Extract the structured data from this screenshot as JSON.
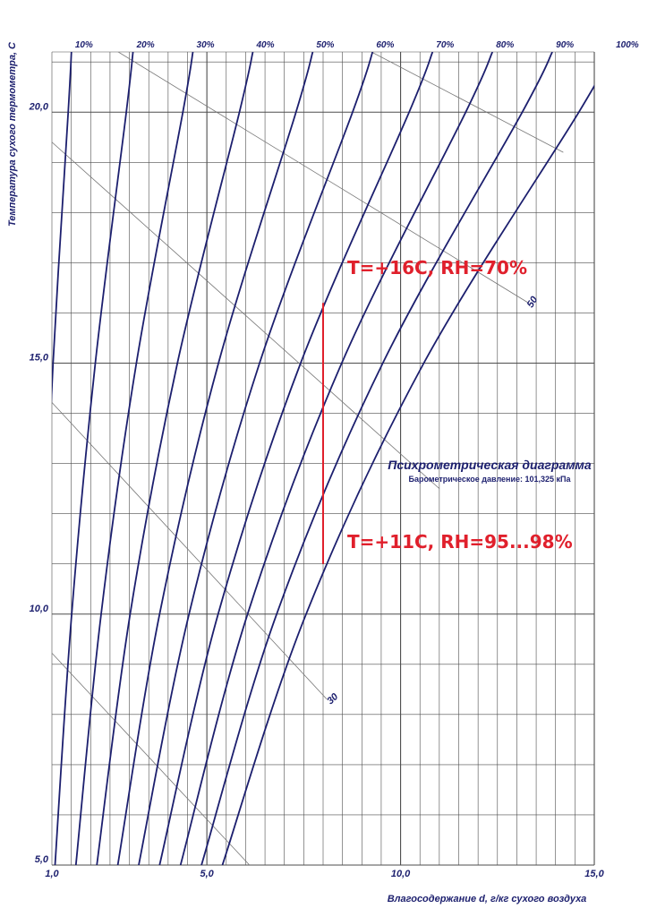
{
  "chart_data": {
    "type": "line",
    "title": "Психрометрическая диаграмма",
    "subtitle": "Барометрическое давление: 101,325 кПа",
    "xlabel": "Влагосодержание d, г/кг сухого воздуха",
    "ylabel": "Температура сухого термометра, С",
    "xlim": [
      1.0,
      15.0
    ],
    "ylim": [
      5.0,
      21.2
    ],
    "grid": true,
    "x_ticks": [
      {
        "value": 1.0,
        "label": "1,0"
      },
      {
        "value": 5.0,
        "label": "5,0"
      },
      {
        "value": 10.0,
        "label": "10,0"
      },
      {
        "value": 15.0,
        "label": "15,0"
      }
    ],
    "y_ticks": [
      {
        "value": 5.0,
        "label": "5,0"
      },
      {
        "value": 10.0,
        "label": "10,0"
      },
      {
        "value": 15.0,
        "label": "15,0"
      },
      {
        "value": 20.0,
        "label": "20,0"
      }
    ],
    "series": [
      {
        "name": "10%",
        "label": "10%",
        "x": [
          0.54,
          0.75,
          1.03,
          1.42
        ],
        "y": [
          5,
          10,
          15,
          20
        ]
      },
      {
        "name": "20%",
        "label": "20%",
        "x": [
          1.08,
          1.51,
          2.12,
          2.92
        ],
        "y": [
          5,
          10,
          15,
          20
        ]
      },
      {
        "name": "30%",
        "label": "30%",
        "x": [
          1.62,
          2.27,
          3.18,
          4.38
        ],
        "y": [
          5,
          10,
          15,
          20
        ]
      },
      {
        "name": "40%",
        "label": "40%",
        "x": [
          2.16,
          3.02,
          4.24,
          5.84
        ],
        "y": [
          5,
          10,
          15,
          20
        ]
      },
      {
        "name": "50%",
        "label": "50%",
        "x": [
          2.7,
          3.78,
          5.3,
          7.3
        ],
        "y": [
          5,
          10,
          15,
          20
        ]
      },
      {
        "name": "60%",
        "label": "60%",
        "x": [
          3.24,
          4.54,
          6.36,
          8.76
        ],
        "y": [
          5,
          10,
          15,
          20
        ]
      },
      {
        "name": "70%",
        "label": "70%",
        "x": [
          3.78,
          5.29,
          7.42,
          10.22
        ],
        "y": [
          5,
          10,
          15,
          20
        ]
      },
      {
        "name": "80%",
        "label": "80%",
        "x": [
          4.32,
          6.05,
          8.48,
          11.68
        ],
        "y": [
          5,
          10,
          15,
          20
        ]
      },
      {
        "name": "90%",
        "label": "90%",
        "x": [
          4.86,
          6.8,
          9.54,
          13.14
        ],
        "y": [
          5,
          10,
          15,
          20
        ]
      },
      {
        "name": "100%",
        "label": "100%",
        "x": [
          5.4,
          7.56,
          10.6,
          14.6
        ],
        "y": [
          5,
          10,
          15,
          20
        ]
      }
    ],
    "diagonal_lines": [
      {
        "x": [
          -0.3,
          6.1
        ],
        "y": [
          10.3,
          5.0
        ]
      },
      {
        "x": [
          -0.3,
          8.1
        ],
        "y": [
          15.3,
          8.3
        ],
        "label": "30"
      },
      {
        "x": [
          -0.3,
          11.0
        ],
        "y": [
          20.3,
          12.5
        ]
      },
      {
        "x": [
          2.5,
          13.3
        ],
        "y": [
          21.3,
          16.2
        ],
        "label": "50"
      },
      {
        "x": [
          9.0,
          14.2
        ],
        "y": [
          21.3,
          19.2
        ]
      }
    ],
    "process_line": {
      "x": [
        8.0,
        8.0
      ],
      "y": [
        11.0,
        16.2
      ]
    },
    "annotations": [
      {
        "text": "T=+16C, RH=70%",
        "x": 8.2,
        "y": 16.2
      },
      {
        "text": "T=+11C, RH=95...98%",
        "x": 8.2,
        "y": 11.0
      }
    ],
    "colors": {
      "rh_curve": "#1c1f6e",
      "grid": "#4d4d4d",
      "diagonal": "#777777",
      "process": "#e0202c",
      "axis_text": "#1c1f6e",
      "annotation": "#e0202c"
    }
  }
}
